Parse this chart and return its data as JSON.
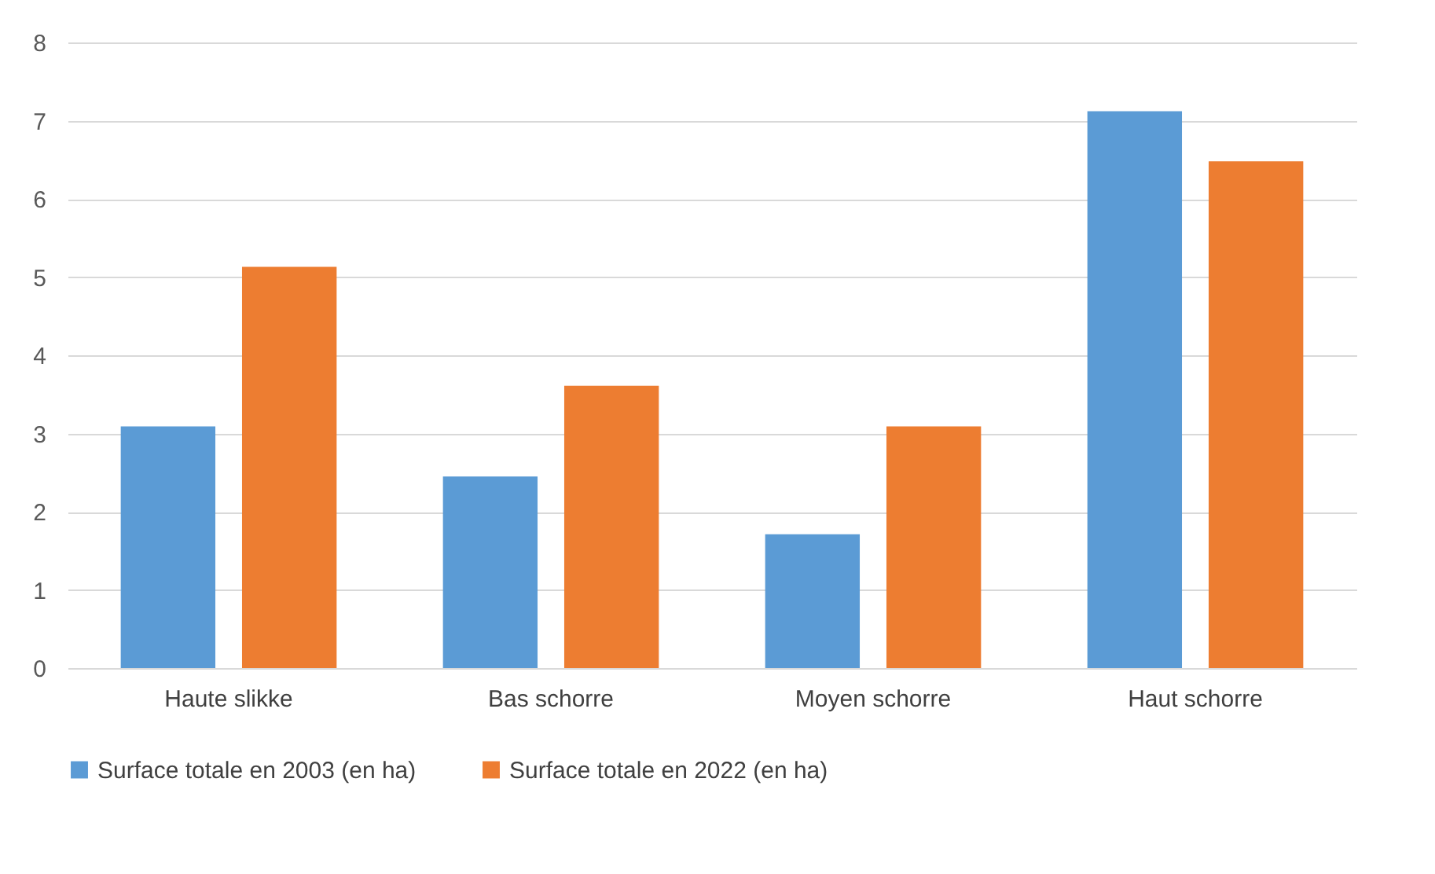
{
  "chart_data": {
    "type": "bar",
    "categories": [
      "Haute slikke",
      "Bas schorre",
      "Moyen schorre",
      "Haut schorre"
    ],
    "series": [
      {
        "name": "Surface totale en 2003 (en ha)",
        "color": "#5b9bd5",
        "values": [
          3.09,
          2.45,
          1.71,
          7.12
        ]
      },
      {
        "name": "Surface totale en 2022 (en ha)",
        "color": "#ed7d31",
        "values": [
          5.13,
          3.61,
          3.09,
          6.48
        ]
      }
    ],
    "ylim": [
      0,
      8
    ],
    "yticks": [
      0,
      1,
      2,
      3,
      4,
      5,
      6,
      7,
      8
    ],
    "grid": "y",
    "legend": "bottom"
  }
}
